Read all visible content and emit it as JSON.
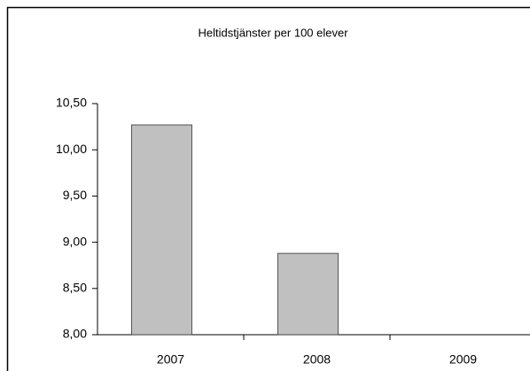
{
  "chart_data": {
    "type": "bar",
    "title": "Heltidstjänster per 100 elever",
    "categories": [
      "2007",
      "2008",
      "2009"
    ],
    "values": [
      10.27,
      8.88,
      null
    ],
    "color": "#c0c0c0",
    "ylim": [
      8,
      10.5
    ],
    "yticks": [
      {
        "value": 8,
        "label": "8,00"
      },
      {
        "value": 8.5,
        "label": "8,50"
      },
      {
        "value": 9,
        "label": "9,00"
      },
      {
        "value": 9.5,
        "label": "9,50"
      },
      {
        "value": 10,
        "label": "10,00"
      },
      {
        "value": 10.5,
        "label": "10,50"
      }
    ],
    "grid": false
  }
}
